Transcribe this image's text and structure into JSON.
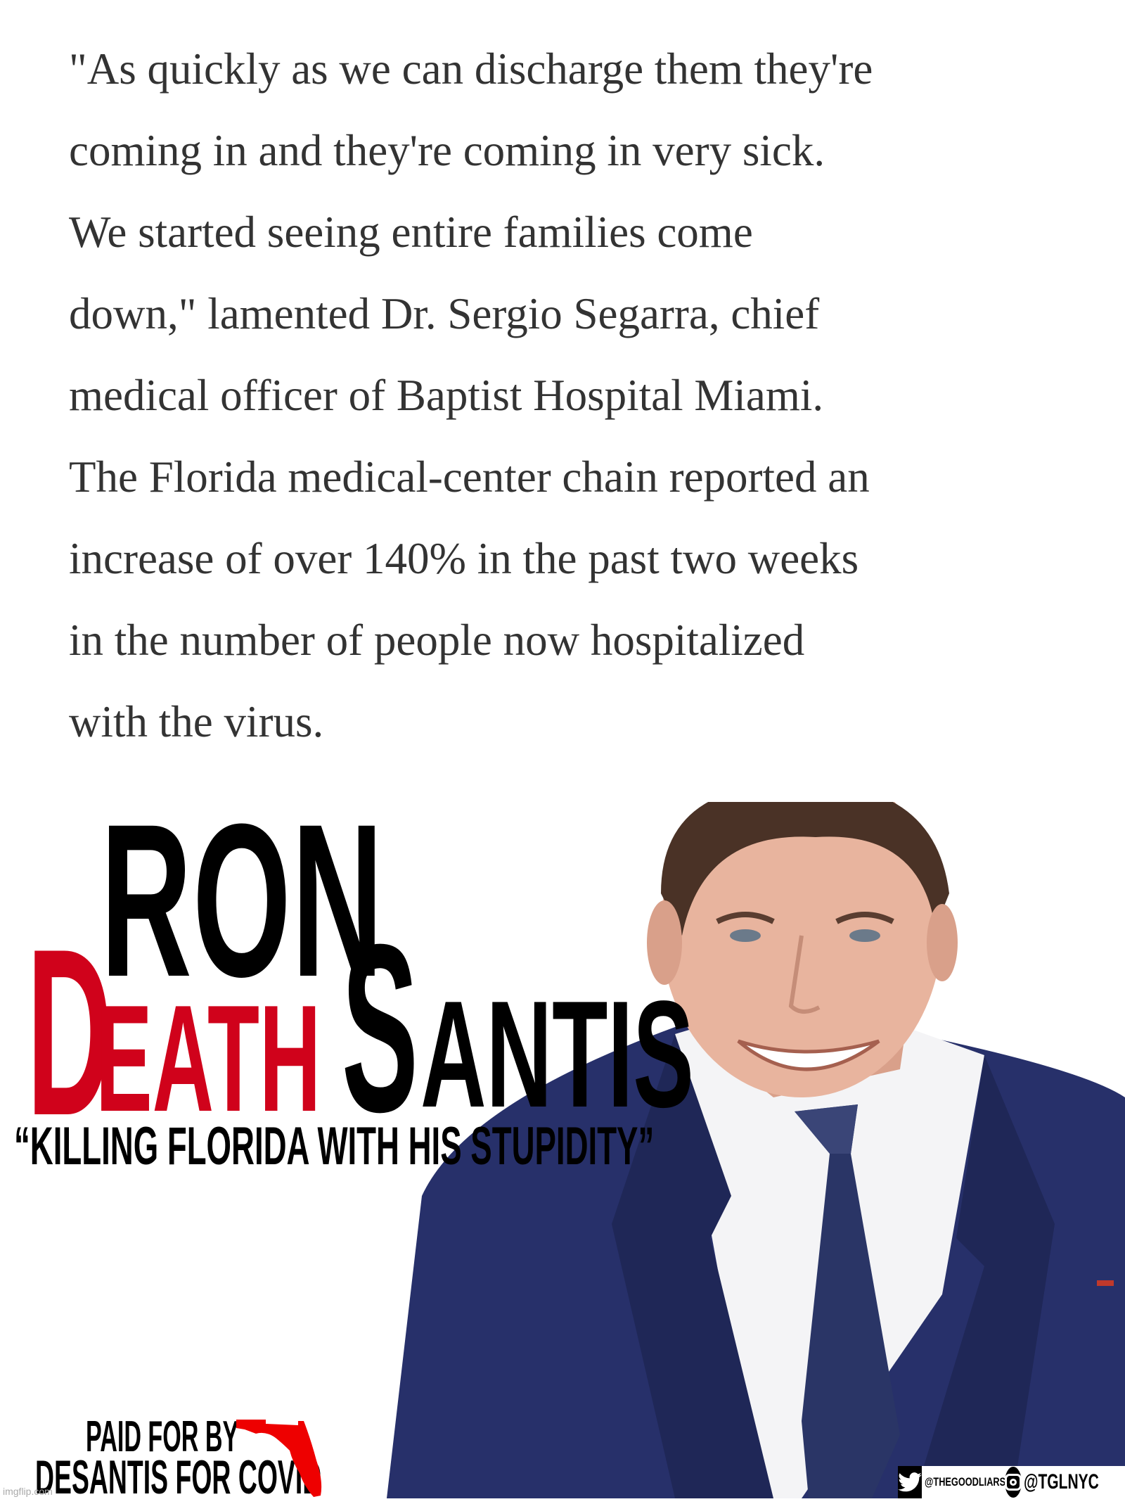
{
  "quote": {
    "lines": [
      "\"As quickly as we can discharge them they're",
      "coming in and they're coming in very sick.",
      "We started seeing entire families come",
      "down,\" lamented Dr. Sergio Segarra, chief",
      "medical officer of Baptist Hospital Miami.",
      "The Florida medical-center chain reported an",
      "increase of over 140% in the past two weeks",
      "in the number of people now hospitalized",
      "with the virus."
    ]
  },
  "title": {
    "ron": "RON",
    "death_initial": "D",
    "death_rest": "EATH",
    "santis_initial": "S",
    "santis_rest": "ANTIS",
    "tagline": "“KILLING FLORIDA WITH HIS STUPIDITY”"
  },
  "footer": {
    "paid_line1": "PAID FOR BY",
    "paid_line2": "DESANTIS FOR COVID",
    "twitter_handle": "@THEGOODLIARS",
    "instagram_handle": "@TGLNYC",
    "watermark": "imgflip.com"
  },
  "colors": {
    "red": "#d0021b",
    "black": "#000000",
    "text": "#333333",
    "suit": "#27306a"
  },
  "icons": [
    "twitter-icon",
    "instagram-icon",
    "florida-map-icon"
  ]
}
